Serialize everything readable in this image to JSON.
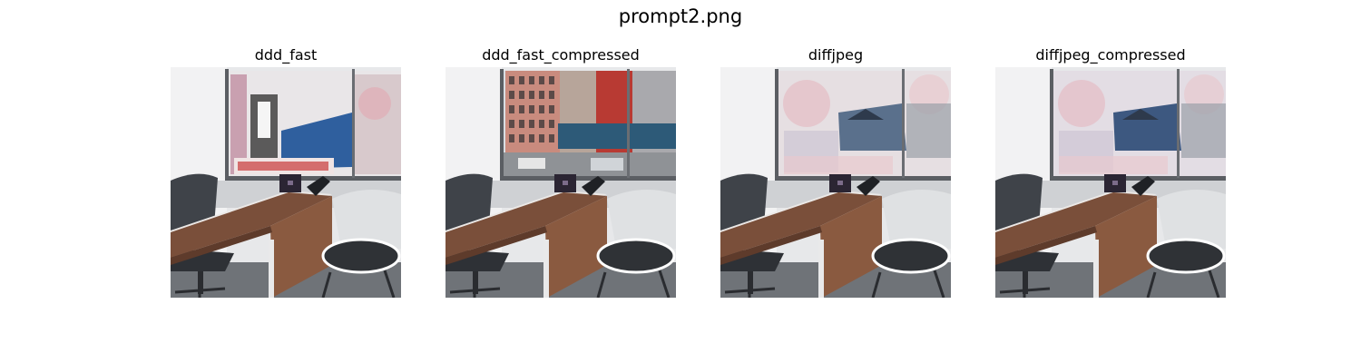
{
  "figure": {
    "title": "prompt2.png"
  },
  "panels": [
    {
      "title": "ddd_fast",
      "variant": "mural",
      "accent": "#2f5f9e"
    },
    {
      "title": "ddd_fast_compressed",
      "variant": "street",
      "accent": "#2d5a78"
    },
    {
      "title": "diffjpeg",
      "variant": "collage",
      "accent": "#5a708c"
    },
    {
      "title": "diffjpeg_compressed",
      "variant": "collage2",
      "accent": "#3d5880"
    }
  ]
}
